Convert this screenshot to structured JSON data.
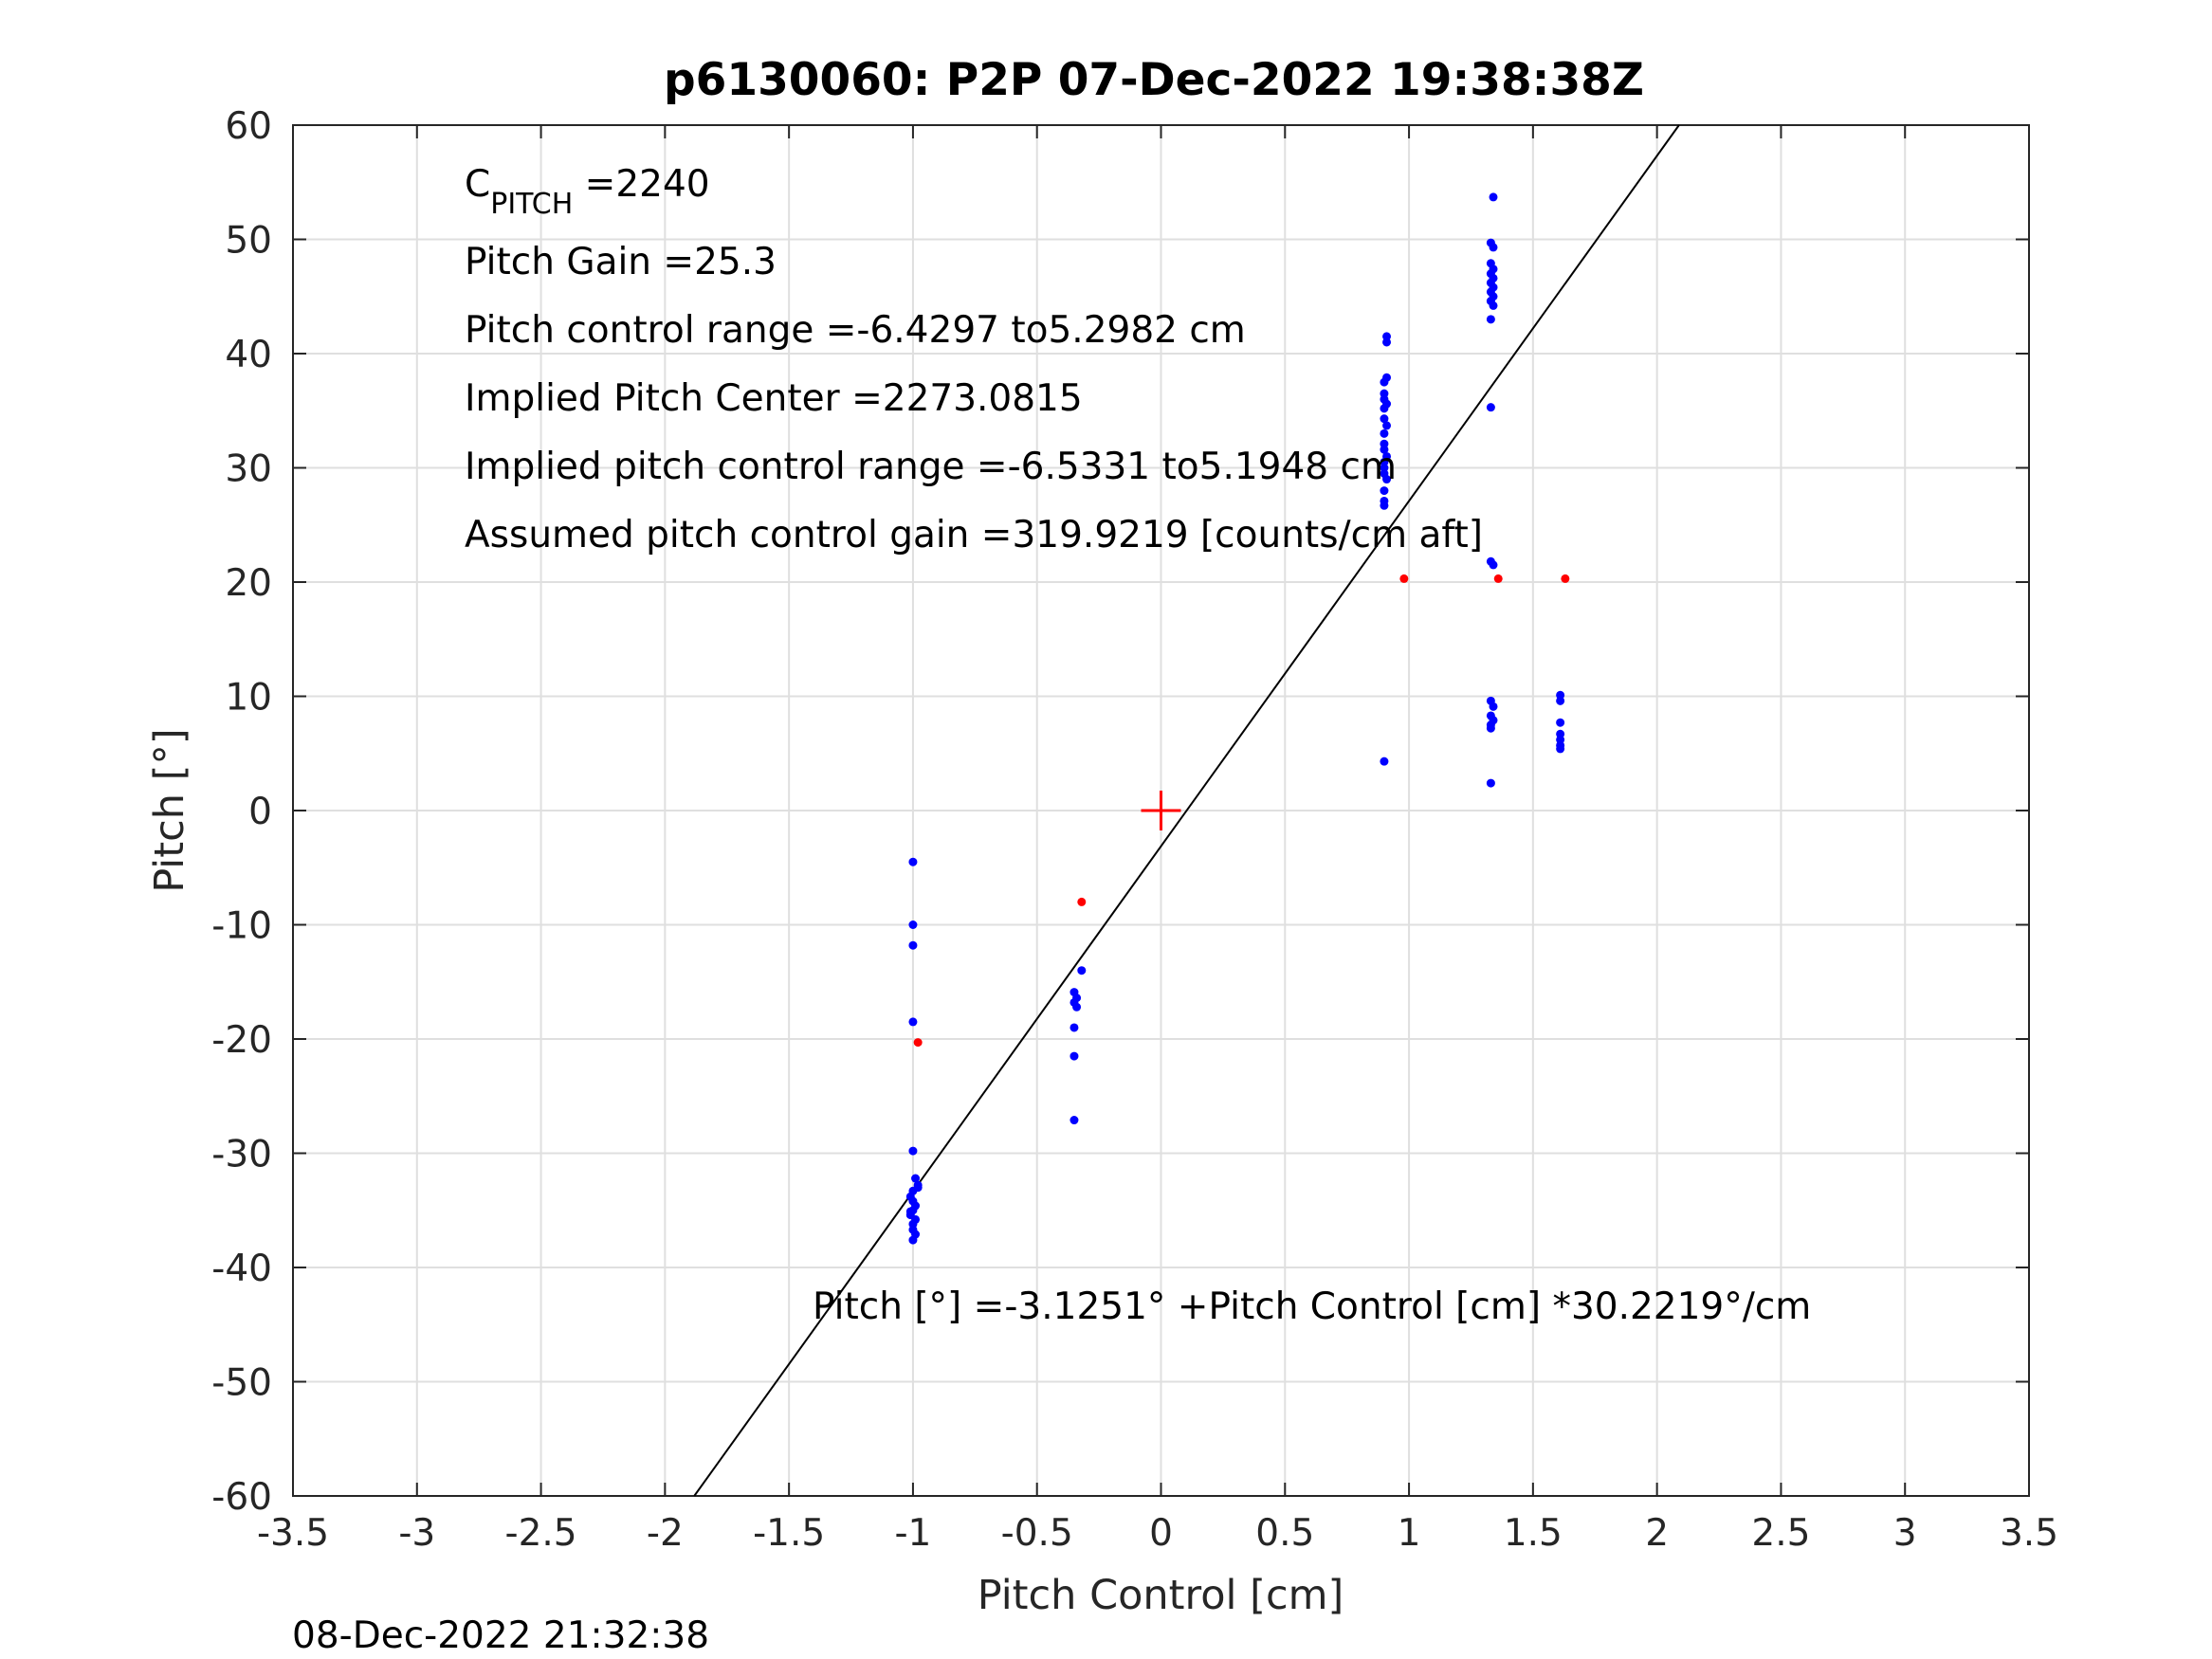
{
  "chart_data": {
    "type": "scatter",
    "title": "p6130060: P2P 07-Dec-2022 19:38:38Z",
    "xlabel": "Pitch Control [cm]",
    "ylabel": "Pitch [°]",
    "xlim": [
      -3.5,
      3.5
    ],
    "ylim": [
      -60,
      60
    ],
    "xticks": [
      -3.5,
      -3,
      -2.5,
      -2,
      -1.5,
      -1,
      -0.5,
      0,
      0.5,
      1,
      1.5,
      2,
      2.5,
      3,
      3.5
    ],
    "xtick_labels": [
      "-3.5",
      "-3",
      "-2.5",
      "-2",
      "-1.5",
      "-1",
      "-0.5",
      "0",
      "0.5",
      "1",
      "1.5",
      "2",
      "2.5",
      "3",
      "3.5"
    ],
    "yticks": [
      60,
      50,
      40,
      30,
      20,
      10,
      0,
      -10,
      -20,
      -30,
      -40,
      -50,
      -60
    ],
    "ytick_labels": [
      "60",
      "50",
      "40",
      "30",
      "20",
      "10",
      "0",
      "-10",
      "-20",
      "-30",
      "-40",
      "-50",
      "-60"
    ],
    "grid": true,
    "colors": {
      "valid": "#0000ff",
      "excluded": "#ff0000",
      "center": "#ff0000",
      "fit": "#000000"
    },
    "fit_line": {
      "intercept": -3.1251,
      "slope": 30.2219
    },
    "center_marker": {
      "x": 0,
      "y": 0
    },
    "series": [
      {
        "color": "#0000ff",
        "points": [
          [
            -1.0,
            -4.5
          ],
          [
            -1.0,
            -10.0
          ],
          [
            -1.0,
            -11.8
          ],
          [
            -1.0,
            -18.5
          ],
          [
            -1.0,
            -29.8
          ],
          [
            -0.99,
            -32.2
          ],
          [
            -0.98,
            -32.8
          ],
          [
            -1.0,
            -33.3
          ],
          [
            -1.01,
            -33.8
          ],
          [
            -1.0,
            -34.2
          ],
          [
            -0.99,
            -34.6
          ],
          [
            -1.0,
            -35.0
          ],
          [
            -1.01,
            -35.4
          ],
          [
            -0.99,
            -35.8
          ],
          [
            -1.0,
            -36.2
          ],
          [
            -1.0,
            -36.7
          ],
          [
            -0.99,
            -37.1
          ],
          [
            -1.0,
            -37.6
          ],
          [
            -0.98,
            -33.0
          ],
          [
            -1.01,
            -35.1
          ],
          [
            -0.32,
            -14.0
          ],
          [
            -0.35,
            -15.9
          ],
          [
            -0.34,
            -16.4
          ],
          [
            -0.35,
            -16.8
          ],
          [
            -0.34,
            -17.2
          ],
          [
            -0.35,
            -19.0
          ],
          [
            -0.35,
            -21.5
          ],
          [
            -0.35,
            -27.1
          ],
          [
            0.9,
            4.3
          ],
          [
            0.91,
            41.5
          ],
          [
            0.91,
            41.0
          ],
          [
            0.91,
            37.9
          ],
          [
            0.9,
            37.5
          ],
          [
            0.9,
            36.5
          ],
          [
            0.9,
            36.0
          ],
          [
            0.91,
            35.6
          ],
          [
            0.9,
            35.2
          ],
          [
            0.9,
            34.3
          ],
          [
            0.91,
            33.7
          ],
          [
            0.9,
            33.0
          ],
          [
            0.9,
            32.1
          ],
          [
            0.9,
            31.6
          ],
          [
            0.91,
            31.0
          ],
          [
            0.9,
            30.5
          ],
          [
            0.9,
            30.0
          ],
          [
            0.9,
            29.5
          ],
          [
            0.91,
            29.0
          ],
          [
            0.9,
            28.0
          ],
          [
            0.9,
            27.1
          ],
          [
            0.9,
            26.7
          ],
          [
            1.34,
            53.7
          ],
          [
            1.33,
            49.7
          ],
          [
            1.34,
            49.3
          ],
          [
            1.33,
            47.9
          ],
          [
            1.34,
            47.4
          ],
          [
            1.33,
            47.0
          ],
          [
            1.34,
            46.6
          ],
          [
            1.33,
            46.2
          ],
          [
            1.34,
            45.8
          ],
          [
            1.33,
            45.4
          ],
          [
            1.34,
            45.0
          ],
          [
            1.33,
            44.6
          ],
          [
            1.34,
            44.2
          ],
          [
            1.33,
            43.0
          ],
          [
            1.33,
            35.3
          ],
          [
            1.33,
            21.8
          ],
          [
            1.34,
            21.5
          ],
          [
            1.33,
            9.6
          ],
          [
            1.34,
            9.1
          ],
          [
            1.33,
            8.3
          ],
          [
            1.34,
            7.9
          ],
          [
            1.33,
            7.5
          ],
          [
            1.33,
            7.2
          ],
          [
            1.33,
            2.4
          ],
          [
            1.61,
            10.1
          ],
          [
            1.61,
            9.6
          ],
          [
            1.61,
            7.7
          ],
          [
            1.61,
            6.7
          ],
          [
            1.61,
            6.2
          ],
          [
            1.61,
            5.7
          ],
          [
            1.61,
            5.4
          ]
        ]
      },
      {
        "color": "#ff0000",
        "points": [
          [
            -0.98,
            -20.3
          ],
          [
            -0.32,
            -8.0
          ],
          [
            0.98,
            20.3
          ],
          [
            1.36,
            20.3
          ],
          [
            1.63,
            20.3
          ]
        ]
      }
    ],
    "annotations": [
      {
        "kind": "subscript",
        "main": "C",
        "sub": "PITCH",
        "rest": " =2240"
      },
      {
        "text": "Pitch Gain =25.3"
      },
      {
        "text": "Pitch control range =-6.4297 to5.2982 cm"
      },
      {
        "text": "Implied Pitch Center =2273.0815"
      },
      {
        "text": "Implied pitch control range =-6.5331 to5.1948 cm"
      },
      {
        "text": "Assumed pitch control gain =319.9219 [counts/cm aft]"
      }
    ],
    "fit_equation": "Pitch [°] =-3.1251° +Pitch Control [cm] *30.2219°/cm",
    "timestamp": "08-Dec-2022 21:32:38"
  }
}
